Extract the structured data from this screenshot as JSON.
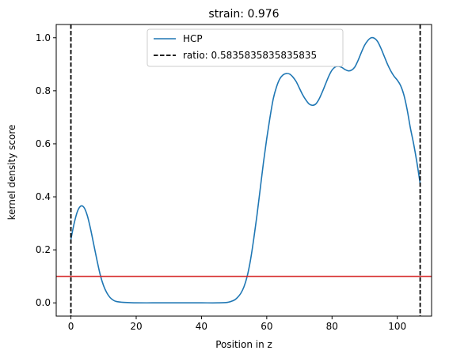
{
  "chart_data": {
    "type": "line",
    "title": "strain: 0.976",
    "xlabel": "Position in z",
    "ylabel": "kernel density score",
    "xlim": [
      -4.5,
      110.5
    ],
    "ylim": [
      -0.05,
      1.05
    ],
    "xticks": [
      0,
      20,
      40,
      60,
      80,
      100
    ],
    "xtick_labels": [
      "0",
      "20",
      "40",
      "60",
      "80",
      "100"
    ],
    "yticks": [
      0.0,
      0.2,
      0.4,
      0.6,
      0.8,
      1.0
    ],
    "ytick_labels": [
      "0.0",
      "0.2",
      "0.4",
      "0.6",
      "0.8",
      "1.0"
    ],
    "grid": false,
    "legend_position": "top-center",
    "series": [
      {
        "name": "HCP",
        "color": "#1f77b4",
        "style": "solid",
        "x": [
          0,
          1,
          2,
          3,
          4,
          5,
          6,
          7,
          8,
          9,
          10,
          11,
          12,
          13,
          14,
          16,
          18,
          20,
          25,
          30,
          35,
          40,
          45,
          48,
          50,
          51,
          52,
          53,
          54,
          55,
          56,
          57,
          58,
          59,
          60,
          61,
          62,
          63,
          64,
          65,
          66,
          67,
          68,
          69,
          70,
          71,
          72,
          73,
          74,
          75,
          76,
          77,
          78,
          79,
          80,
          81,
          82,
          83,
          84,
          85,
          86,
          87,
          88,
          89,
          90,
          91,
          92,
          93,
          94,
          95,
          96,
          97,
          98,
          99,
          100,
          101,
          102,
          103,
          104,
          105,
          106,
          107
        ],
        "y": [
          0.24,
          0.3,
          0.345,
          0.365,
          0.36,
          0.33,
          0.28,
          0.22,
          0.16,
          0.105,
          0.065,
          0.038,
          0.02,
          0.01,
          0.005,
          0.002,
          0.001,
          0.0,
          0.0,
          0.0,
          0.0,
          0.0,
          0.0,
          0.002,
          0.01,
          0.02,
          0.035,
          0.06,
          0.1,
          0.16,
          0.24,
          0.33,
          0.43,
          0.53,
          0.62,
          0.7,
          0.77,
          0.815,
          0.845,
          0.86,
          0.865,
          0.863,
          0.852,
          0.835,
          0.81,
          0.785,
          0.765,
          0.75,
          0.745,
          0.75,
          0.768,
          0.795,
          0.825,
          0.855,
          0.878,
          0.89,
          0.892,
          0.888,
          0.88,
          0.875,
          0.878,
          0.89,
          0.915,
          0.945,
          0.972,
          0.99,
          1.0,
          0.998,
          0.985,
          0.96,
          0.93,
          0.9,
          0.875,
          0.855,
          0.84,
          0.82,
          0.785,
          0.73,
          0.66,
          0.6,
          0.53,
          0.45
        ]
      }
    ],
    "vlines": [
      {
        "name": "ratio: 0.5835835835835835",
        "x": 0,
        "color": "#000000",
        "style": "dashed"
      },
      {
        "x": 107,
        "color": "#000000",
        "style": "dashed"
      }
    ],
    "hlines": [
      {
        "y": 0.1,
        "color": "#d62728",
        "style": "solid"
      }
    ],
    "legend": [
      {
        "label": "HCP",
        "color": "#1f77b4",
        "style": "solid"
      },
      {
        "label": "ratio: 0.5835835835835835",
        "color": "#000000",
        "style": "dashed"
      }
    ]
  }
}
